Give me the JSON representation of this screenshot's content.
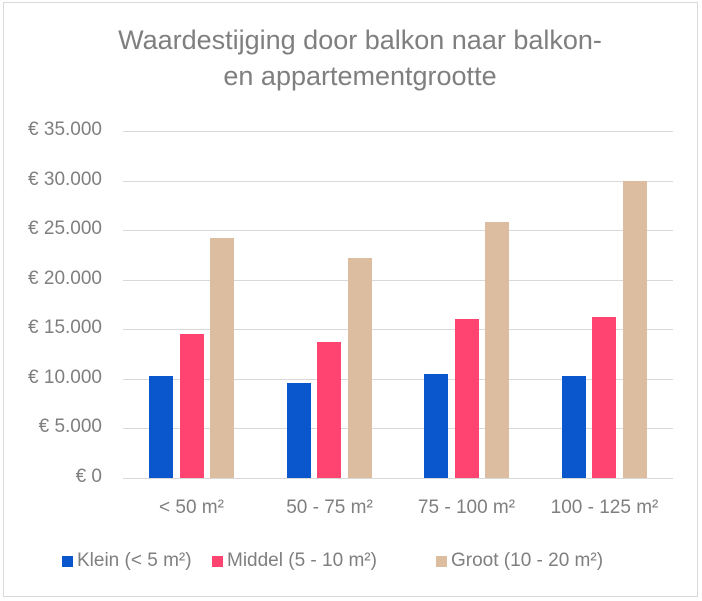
{
  "chart_data": {
    "type": "bar",
    "title": "Waardestijging door balkon naar balkon- en appartementgrootte",
    "title_lines": [
      "Waardestijging door balkon naar balkon-",
      "en appartementgrootte"
    ],
    "xlabel": "",
    "ylabel": "",
    "categories": [
      "< 50 m²",
      "50 - 75 m²",
      "75 - 100 m²",
      "100 - 125 m²"
    ],
    "series": [
      {
        "name": "Klein (< 5 m²)",
        "color": "#0a56cc",
        "values": [
          10300,
          9550,
          10500,
          10300
        ]
      },
      {
        "name": "Middel (5 - 10 m²)",
        "color": "#ff4471",
        "values": [
          14500,
          13700,
          16000,
          16200
        ]
      },
      {
        "name": "Groot (10 - 20 m²)",
        "color": "#ddbda0",
        "values": [
          24200,
          22200,
          25800,
          30000
        ]
      }
    ],
    "ylim": [
      0,
      35000
    ],
    "yticks": [
      0,
      5000,
      10000,
      15000,
      20000,
      25000,
      30000,
      35000
    ],
    "ytick_labels": [
      "€ 0",
      "€ 5.000",
      "€ 10.000",
      "€ 15.000",
      "€ 20.000",
      "€ 25.000",
      "€ 30.000",
      "€ 35.000"
    ],
    "grid": true,
    "legend_position": "bottom"
  }
}
